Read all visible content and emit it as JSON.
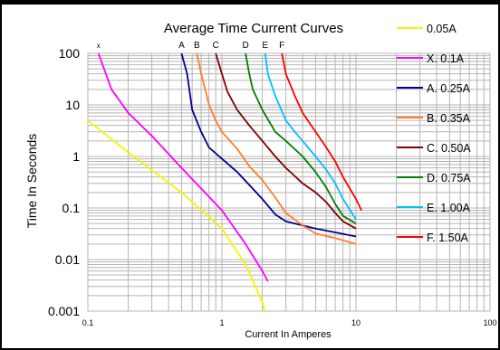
{
  "chart_data": {
    "type": "line",
    "title": "Average Time Current Curves",
    "xlabel": "Current In Amperes",
    "ylabel": "Time In Seconds",
    "x_scale": "log",
    "y_scale": "log",
    "xlim": [
      0.1,
      100
    ],
    "ylim": [
      0.001,
      100
    ],
    "grid": true,
    "legend_position": "right",
    "x_ticks": [
      "0.1",
      "1",
      "10",
      "100"
    ],
    "y_ticks": [
      "0.001",
      "0.01",
      "0.1",
      "1",
      "10",
      "100"
    ],
    "series": [
      {
        "name": "0.05A",
        "label": "",
        "color": "#f5f500",
        "points": [
          [
            0.1,
            5
          ],
          [
            0.2,
            1.2
          ],
          [
            0.5,
            0.2
          ],
          [
            1,
            0.04
          ],
          [
            1.5,
            0.008
          ],
          [
            2,
            0.0015
          ],
          [
            2.08,
            0.001
          ]
        ]
      },
      {
        "name": "X. 0.1A",
        "label": "x",
        "color": "#ff00ff",
        "points": [
          [
            0.12,
            100
          ],
          [
            0.15,
            20
          ],
          [
            0.2,
            7
          ],
          [
            0.3,
            2.5
          ],
          [
            0.5,
            0.6
          ],
          [
            1,
            0.09
          ],
          [
            1.5,
            0.02
          ],
          [
            2,
            0.006
          ],
          [
            2.2,
            0.0038
          ]
        ]
      },
      {
        "name": "A. 0.25A",
        "label": "A",
        "color": "#00008b",
        "points": [
          [
            0.5,
            100
          ],
          [
            0.55,
            40
          ],
          [
            0.6,
            8
          ],
          [
            0.7,
            3
          ],
          [
            0.8,
            1.5
          ],
          [
            1,
            0.9
          ],
          [
            1.3,
            0.5
          ],
          [
            1.6,
            0.28
          ],
          [
            2,
            0.15
          ],
          [
            2.5,
            0.075
          ],
          [
            3,
            0.055
          ],
          [
            5,
            0.04
          ],
          [
            10,
            0.028
          ]
        ]
      },
      {
        "name": "B. 0.35A",
        "label": "B",
        "color": "#ff7f27",
        "points": [
          [
            0.65,
            100
          ],
          [
            0.7,
            40
          ],
          [
            0.75,
            20
          ],
          [
            0.8,
            10
          ],
          [
            0.9,
            5
          ],
          [
            1,
            3
          ],
          [
            1.3,
            1.4
          ],
          [
            1.6,
            0.65
          ],
          [
            2,
            0.35
          ],
          [
            2.5,
            0.16
          ],
          [
            3,
            0.08
          ],
          [
            4,
            0.046
          ],
          [
            5,
            0.032
          ],
          [
            7,
            0.026
          ],
          [
            10,
            0.02
          ]
        ]
      },
      {
        "name": "C. 0.50A",
        "label": "C",
        "color": "#800000",
        "points": [
          [
            0.9,
            100
          ],
          [
            1,
            40
          ],
          [
            1.1,
            18
          ],
          [
            1.3,
            8
          ],
          [
            1.6,
            4
          ],
          [
            2,
            2
          ],
          [
            2.5,
            1
          ],
          [
            3,
            0.6
          ],
          [
            4,
            0.3
          ],
          [
            5,
            0.2
          ],
          [
            6,
            0.13
          ],
          [
            7,
            0.08
          ],
          [
            8,
            0.055
          ],
          [
            10,
            0.04
          ]
        ]
      },
      {
        "name": "D. 0.75A",
        "label": "D",
        "color": "#008000",
        "points": [
          [
            1.5,
            100
          ],
          [
            1.6,
            40
          ],
          [
            1.7,
            20
          ],
          [
            2,
            8
          ],
          [
            2.5,
            3
          ],
          [
            3,
            2
          ],
          [
            4,
            1
          ],
          [
            5,
            0.5
          ],
          [
            6,
            0.25
          ],
          [
            7,
            0.12
          ],
          [
            8,
            0.07
          ],
          [
            10,
            0.05
          ]
        ]
      },
      {
        "name": "E. 1.00A",
        "label": "E",
        "color": "#00bfff",
        "points": [
          [
            2.1,
            100
          ],
          [
            2.2,
            40
          ],
          [
            2.5,
            15
          ],
          [
            3,
            5
          ],
          [
            3.5,
            3
          ],
          [
            4,
            2
          ],
          [
            5,
            1
          ],
          [
            6,
            0.55
          ],
          [
            7,
            0.3
          ],
          [
            8,
            0.15
          ],
          [
            10,
            0.06
          ]
        ]
      },
      {
        "name": "F. 1.50A",
        "label": "F",
        "color": "#ff0000",
        "points": [
          [
            2.8,
            100
          ],
          [
            3,
            40
          ],
          [
            3.5,
            15
          ],
          [
            4,
            7
          ],
          [
            5,
            3
          ],
          [
            6,
            1.5
          ],
          [
            7,
            0.8
          ],
          [
            8,
            0.4
          ],
          [
            10,
            0.15
          ],
          [
            11,
            0.09
          ]
        ]
      }
    ]
  }
}
